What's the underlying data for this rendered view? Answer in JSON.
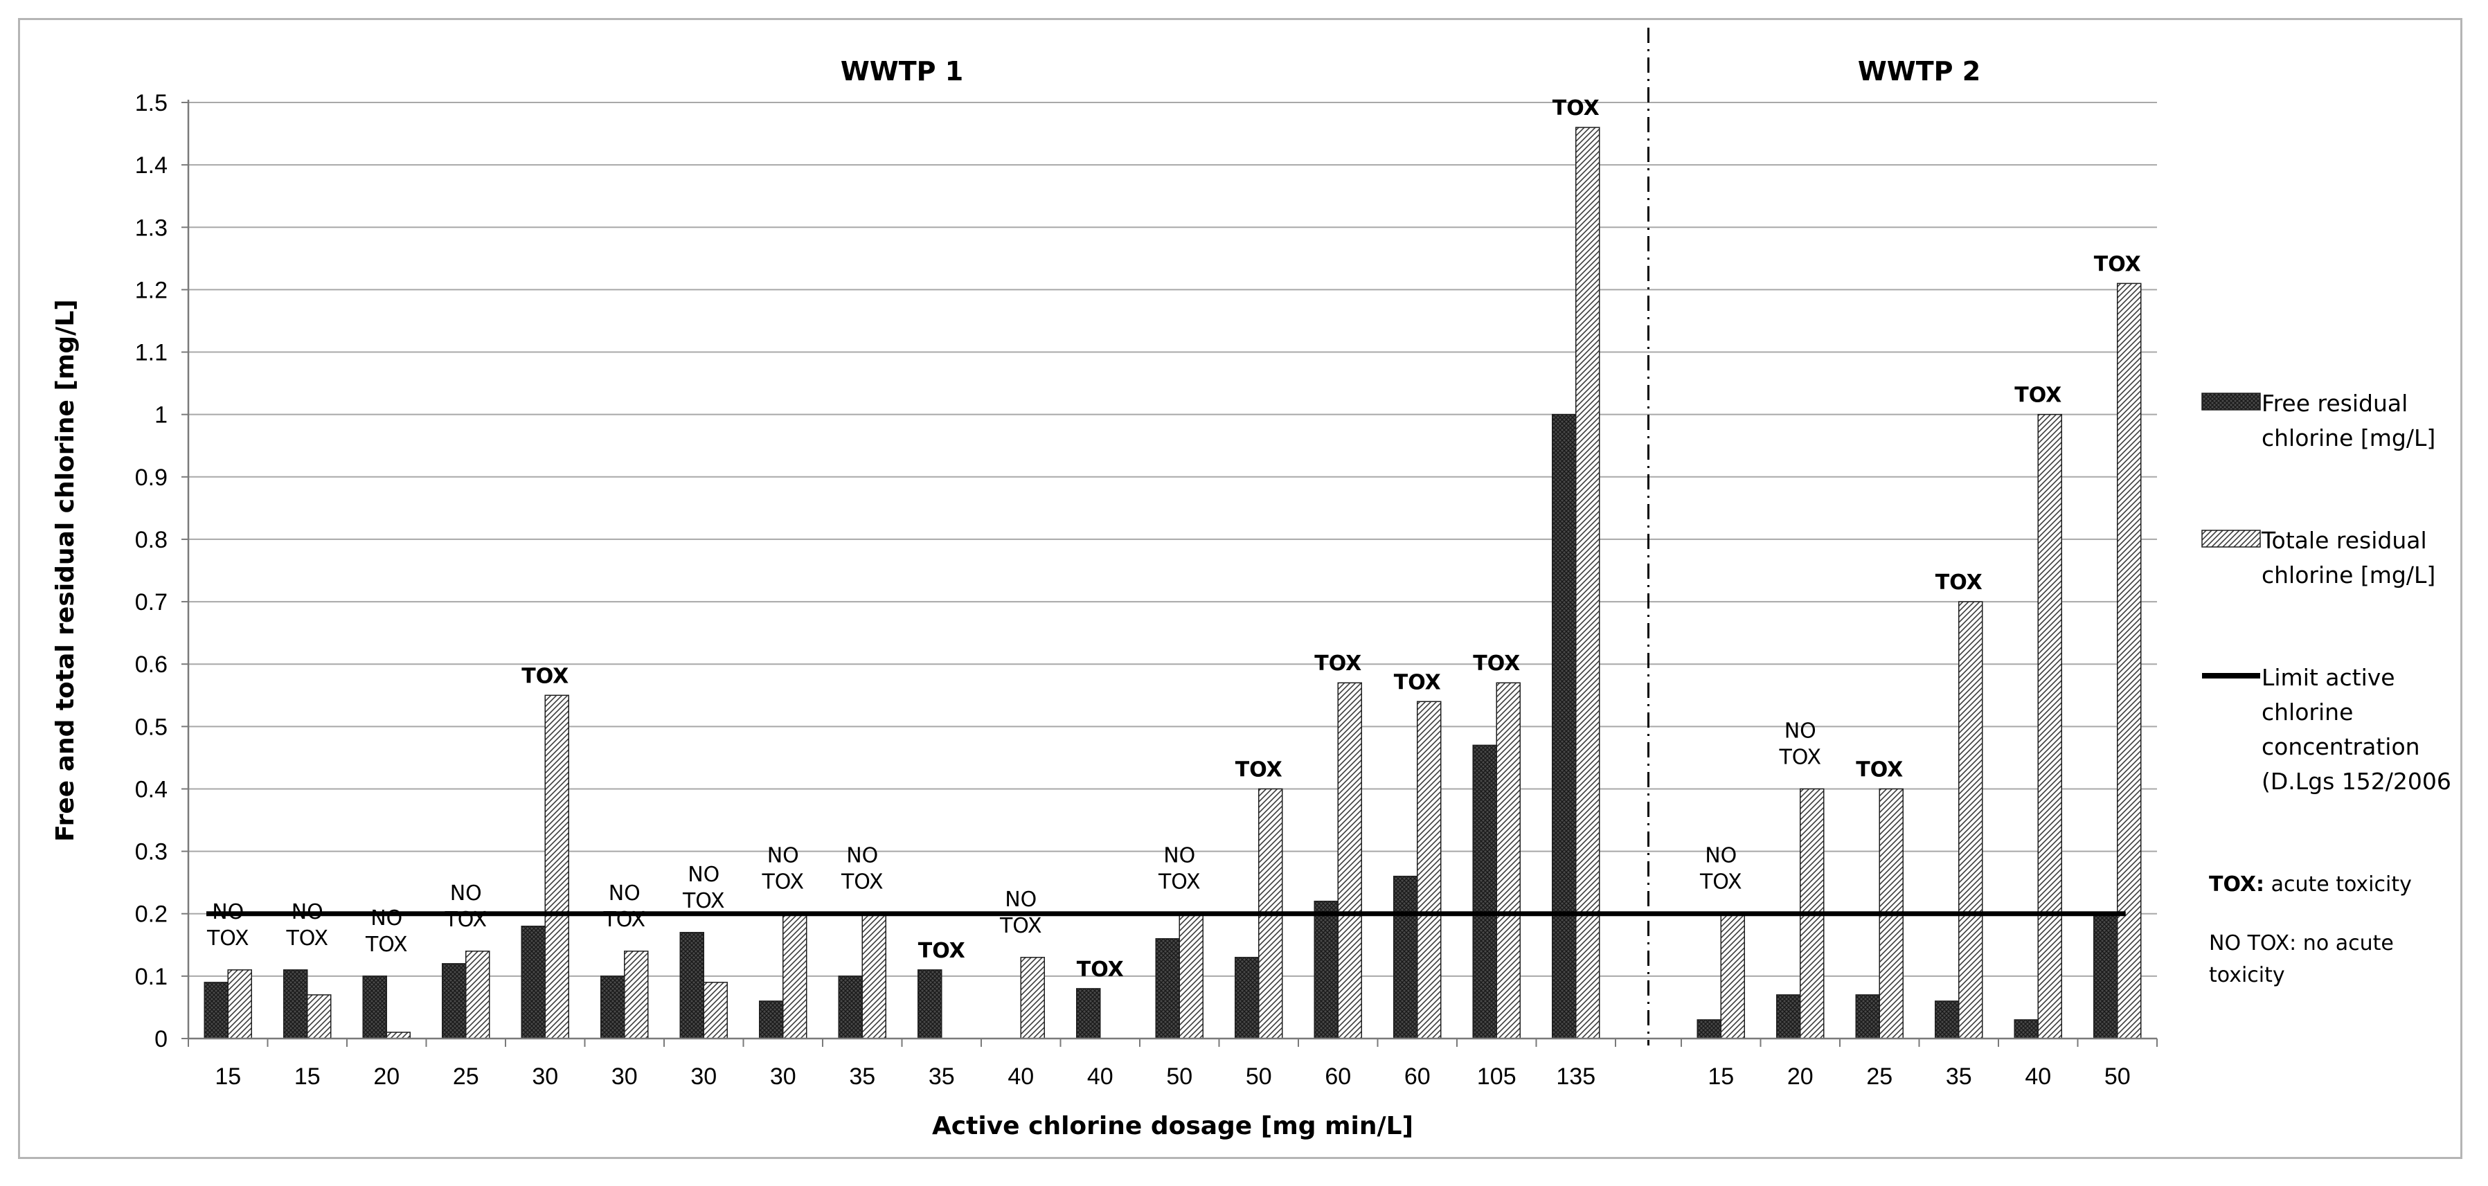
{
  "chart_data": {
    "type": "bar",
    "ylabel": "Free and total residual chlorine [mg/L]",
    "xlabel": "Active chlorine dosage [mg min/L]",
    "ylim": [
      0,
      1.5
    ],
    "yticks": [
      "0",
      "0.1",
      "0.2",
      "0.3",
      "0.4",
      "0.5",
      "0.6",
      "0.7",
      "0.8",
      "0.9",
      "1",
      "1.1",
      "1.2",
      "1.3",
      "1.4",
      "1.5"
    ],
    "grid": true,
    "legend_position": "right",
    "colors": {
      "free": "#4a4a4a",
      "total": "#dcdcdc",
      "limit": "#000000"
    },
    "groups": [
      {
        "label": "WWTP 1",
        "categories": [
          "15",
          "15",
          "20",
          "25",
          "30",
          "30",
          "30",
          "30",
          "35",
          "35",
          "40",
          "40",
          "50",
          "50",
          "60",
          "60",
          "105",
          "135"
        ]
      },
      {
        "label": "WWTP 2",
        "categories": [
          "15",
          "20",
          "25",
          "35",
          "40",
          "50"
        ]
      }
    ],
    "categories": [
      "15",
      "15",
      "20",
      "25",
      "30",
      "30",
      "30",
      "30",
      "35",
      "35",
      "40",
      "40",
      "50",
      "50",
      "60",
      "60",
      "105",
      "135",
      "15",
      "20",
      "25",
      "35",
      "40",
      "50"
    ],
    "series": [
      {
        "name": "Free residual chlorine [mg/L]",
        "values": [
          0.09,
          0.11,
          0.1,
          0.12,
          0.18,
          0.1,
          0.17,
          0.06,
          0.1,
          0.11,
          null,
          0.08,
          0.16,
          0.13,
          0.22,
          0.26,
          0.47,
          1.0,
          0.03,
          0.07,
          0.07,
          0.06,
          0.03,
          0.2
        ]
      },
      {
        "name": "Totale residual chlorine [mg/L]",
        "values": [
          0.11,
          0.07,
          0.01,
          0.14,
          0.55,
          0.14,
          0.09,
          0.2,
          0.2,
          null,
          0.13,
          null,
          0.2,
          0.4,
          0.57,
          0.54,
          0.57,
          1.46,
          0.2,
          0.4,
          0.4,
          0.7,
          1.0,
          1.21
        ]
      }
    ],
    "limit_line": {
      "value": 0.2,
      "label": "Limit active chlorine concentration (D.Lgs 152/2006"
    },
    "annotations": [
      "NO TOX",
      "NO TOX",
      "NO TOX",
      "NO TOX",
      "TOX",
      "NO TOX",
      "NO TOX",
      "NO TOX",
      "NO TOX",
      "TOX",
      "NO TOX",
      "TOX",
      "NO TOX",
      "TOX",
      "TOX",
      "TOX",
      "TOX",
      "TOX",
      "NO TOX",
      "NO TOX",
      "TOX",
      "TOX",
      "TOX",
      "TOX"
    ],
    "notes": [
      {
        "bold": "TOX:",
        "text": " acute toxicity"
      },
      {
        "bold": "",
        "text": "NO TOX: no acute toxicity"
      }
    ]
  }
}
